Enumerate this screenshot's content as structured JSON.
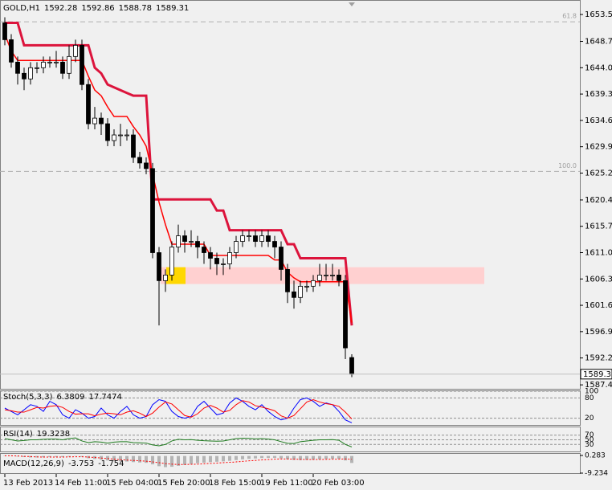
{
  "chart_data": [
    {
      "type": "candlestick",
      "title": "GOLD,H1",
      "categories": [
        "13 Feb 2013",
        null,
        null,
        null,
        null,
        null,
        null,
        null,
        "14 Feb 11:00",
        null,
        null,
        null,
        null,
        null,
        null,
        null,
        "15 Feb 04:00",
        null,
        null,
        null,
        null,
        null,
        null,
        null,
        "15 Feb 20:00",
        null,
        null,
        null,
        null,
        null,
        null,
        null,
        "18 Feb 15:00",
        null,
        null,
        null,
        null,
        null,
        null,
        null,
        "19 Feb 11:00",
        null,
        null,
        null,
        null,
        null,
        null,
        null,
        "20 Feb 03:00",
        null,
        null,
        null,
        null,
        null,
        null
      ],
      "open": [
        1652,
        1649,
        1645,
        1643,
        1642,
        1644,
        1644,
        1645,
        1645,
        1645,
        1643,
        1646,
        1648,
        1641,
        1634,
        1635,
        1634,
        1631,
        1632,
        1632,
        1632,
        1628,
        1627,
        1626,
        1611,
        1606,
        1607,
        1612,
        1614,
        1613,
        1613,
        1612,
        1611,
        1610,
        1609,
        1609,
        1611,
        1613,
        1614,
        1614,
        1613,
        1614,
        1613,
        1612,
        1608,
        1604,
        1603,
        1605,
        1605,
        1606,
        1607,
        1607,
        1607,
        1606,
        1592.28
      ],
      "high": [
        1653,
        1650,
        1646,
        1644,
        1645,
        1645,
        1646,
        1646,
        1647,
        1646,
        1648,
        1649,
        1649,
        1642,
        1637,
        1636,
        1635,
        1633,
        1634,
        1633,
        1633,
        1629,
        1628,
        1627,
        1612,
        1608,
        1613,
        1616,
        1615,
        1615,
        1614,
        1613,
        1612,
        1611,
        1610,
        1612,
        1614,
        1615,
        1615,
        1615,
        1615,
        1615,
        1614,
        1613,
        1609,
        1606,
        1606,
        1606,
        1607,
        1609,
        1609,
        1609,
        1608,
        1607,
        1592.86
      ],
      "low": [
        1648,
        1644,
        1641,
        1640,
        1641,
        1643,
        1643,
        1644,
        1644,
        1642,
        1642,
        1645,
        1640,
        1633,
        1633,
        1632,
        1630,
        1630,
        1630,
        1631,
        1627,
        1626,
        1625,
        1610,
        1598,
        1604,
        1606,
        1611,
        1611,
        1612,
        1610,
        1609,
        1608,
        1607,
        1607,
        1608,
        1610,
        1612,
        1613,
        1612,
        1612,
        1612,
        1610,
        1606,
        1602,
        1601,
        1602,
        1604,
        1604,
        1605,
        1606,
        1606,
        1605,
        1592,
        1588.78
      ],
      "close": [
        1649,
        1645,
        1643,
        1642,
        1644,
        1644,
        1645,
        1645,
        1645,
        1643,
        1646,
        1648,
        1641,
        1634,
        1635,
        1634,
        1631,
        1632,
        1632,
        1632,
        1628,
        1627,
        1626,
        1611,
        1606,
        1607,
        1612,
        1614,
        1613,
        1613,
        1612,
        1611,
        1610,
        1609,
        1609,
        1611,
        1613,
        1614,
        1614,
        1613,
        1614,
        1613,
        1612,
        1608,
        1604,
        1603,
        1605,
        1605,
        1606,
        1607,
        1607,
        1607,
        1606,
        1594,
        1589.31
      ],
      "colors": {
        "up": "#ffffff",
        "down": "#000000",
        "outline": "#000000"
      },
      "series": [
        {
          "color": "#dc143c",
          "values": [
            1652,
            1652,
            1652,
            1648,
            1648,
            1648,
            1648,
            1648,
            1648,
            1648,
            1648,
            1648,
            1648,
            1648,
            1644,
            1643,
            1641,
            1640.5,
            1640,
            1639.5,
            1639,
            1639,
            1639,
            1620.5,
            1620.5,
            1620.5,
            1620.5,
            1620.5,
            1620.5,
            1620.5,
            1620.5,
            1620.5,
            1620.5,
            1618.5,
            1618.5,
            1615,
            1615,
            1615,
            1615,
            1615,
            1615,
            1615,
            1615,
            1615,
            1612.5,
            1612.5,
            1610,
            1610,
            1610,
            1610,
            1610,
            1610,
            1610,
            1610,
            1598
          ]
        },
        {
          "color": "#ff0000",
          "values": [
            1650,
            1647,
            1645.3,
            1645.3,
            1645.3,
            1645.3,
            1645.3,
            1645.3,
            1645.3,
            1645.3,
            1645.3,
            1645.3,
            1645.3,
            1642.5,
            1640,
            1639,
            1637,
            1635.3,
            1635.3,
            1635.3,
            1633.5,
            1632,
            1630,
            1625,
            1620,
            1616,
            1612.5,
            1612.5,
            1612.5,
            1612.5,
            1612.5,
            1612.5,
            1610.5,
            1610.5,
            1610.5,
            1610.5,
            1610.5,
            1610.5,
            1610.5,
            1610.5,
            1610.5,
            1610.5,
            1609.7,
            1609.7,
            1607.5,
            1606.5,
            1605.8,
            1605.8,
            1605.8,
            1605.8,
            1605.8,
            1605.8,
            1605.8,
            1605.8,
            1598.5
          ]
        }
      ],
      "levels": [
        {
          "value": 1652.2,
          "label": "61.8"
        },
        {
          "value": 1625.5,
          "label": "100.0"
        }
      ],
      "zone": {
        "low": 1605.4,
        "high": 1608.4,
        "color": "#ffd0d0",
        "highlight": "#ffd700"
      },
      "ylim": [
        1586.7,
        1655.8
      ],
      "yticks": [
        {
          "value": 1653.5,
          "label": "1653.50"
        },
        {
          "value": 1648.7,
          "label": "1648.70"
        },
        {
          "value": 1644,
          "label": "1644.00"
        },
        {
          "value": 1639.3,
          "label": "1639.30"
        },
        {
          "value": 1634.6,
          "label": "1634.60"
        },
        {
          "value": 1629.9,
          "label": "1629.90"
        },
        {
          "value": 1625.2,
          "label": "1625.20"
        },
        {
          "value": 1620.4,
          "label": "1620.40"
        },
        {
          "value": 1615.7,
          "label": "1615.70"
        },
        {
          "value": 1611,
          "label": "1611.00"
        },
        {
          "value": 1606.3,
          "label": "1606.30"
        },
        {
          "value": 1601.6,
          "label": "1601.60"
        },
        {
          "value": 1596.9,
          "label": "1596.90"
        },
        {
          "value": 1592.2,
          "label": "1592.20"
        },
        {
          "value": 1587.4,
          "label": "1587.40"
        }
      ]
    },
    {
      "type": "line",
      "title": "Stoch(5,3,3)",
      "series": [
        {
          "color": "#0000ff",
          "values": [
            50,
            40,
            30,
            45,
            60,
            55,
            40,
            70,
            60,
            30,
            20,
            45,
            35,
            20,
            25,
            50,
            30,
            20,
            40,
            55,
            30,
            20,
            25,
            60,
            75,
            70,
            40,
            25,
            20,
            25,
            55,
            70,
            50,
            30,
            35,
            65,
            80,
            70,
            55,
            45,
            60,
            40,
            25,
            15,
            20,
            50,
            75,
            80,
            70,
            55,
            65,
            60,
            40,
            15,
            6.3809
          ]
        },
        {
          "color": "#ff0000",
          "values": [
            45,
            42,
            38,
            38,
            45,
            52,
            50,
            55,
            57,
            52,
            40,
            32,
            33,
            33,
            27,
            32,
            35,
            33,
            30,
            38,
            42,
            35,
            25,
            35,
            53,
            68,
            62,
            45,
            28,
            23,
            33,
            50,
            58,
            50,
            38,
            43,
            60,
            72,
            68,
            57,
            53,
            48,
            42,
            27,
            20,
            28,
            48,
            68,
            75,
            68,
            63,
            60,
            55,
            38,
            17.7474
          ]
        }
      ],
      "ylim": [
        0,
        100
      ],
      "yticks": [
        20,
        80,
        100
      ]
    },
    {
      "type": "line",
      "title": "RSI(14)",
      "series": [
        {
          "color": "#1e7b1e",
          "values": [
            55,
            50,
            45,
            47,
            50,
            50,
            52,
            53,
            53,
            50,
            55,
            58,
            45,
            38,
            42,
            40,
            36,
            40,
            42,
            42,
            38,
            37,
            36,
            28,
            24,
            30,
            45,
            52,
            50,
            51,
            48,
            46,
            45,
            44,
            45,
            50,
            55,
            57,
            56,
            54,
            55,
            53,
            50,
            42,
            35,
            34,
            42,
            45,
            48,
            50,
            50,
            51,
            48,
            30,
            19.3238
          ]
        }
      ],
      "ylim": [
        0,
        100
      ],
      "yticks": [
        30,
        50,
        70
      ]
    },
    {
      "type": "bar",
      "title": "MACD(12,26,9)",
      "series": [
        {
          "kind": "histogram",
          "color": "#b4b4b4",
          "values": [
            0.2,
            0.1,
            -0.3,
            -0.6,
            -0.8,
            -0.8,
            -0.7,
            -0.6,
            -0.5,
            -0.6,
            -0.4,
            -0.1,
            -0.5,
            -1.2,
            -1.6,
            -2,
            -2.4,
            -2.8,
            -2.9,
            -3,
            -3.3,
            -3.5,
            -3.7,
            -4.5,
            -5.5,
            -6,
            -5.8,
            -5.3,
            -4.8,
            -4.3,
            -3.9,
            -3.6,
            -3.3,
            -3.1,
            -2.9,
            -2.6,
            -2.2,
            -1.8,
            -1.5,
            -1.3,
            -1.1,
            -1,
            -1,
            -1.3,
            -1.8,
            -2.1,
            -2.2,
            -2.1,
            -2,
            -1.8,
            -1.6,
            -1.5,
            -1.5,
            -2.4,
            -3.753
          ]
        },
        {
          "kind": "line",
          "color": "#ff0000",
          "values": [
            0.1,
            0.1,
            0,
            -0.2,
            -0.3,
            -0.5,
            -0.6,
            -0.6,
            -0.6,
            -0.6,
            -0.5,
            -0.4,
            -0.4,
            -0.6,
            -0.8,
            -1.1,
            -1.4,
            -1.7,
            -2,
            -2.2,
            -2.4,
            -2.6,
            -2.8,
            -3.2,
            -3.6,
            -4.1,
            -4.4,
            -4.6,
            -4.6,
            -4.5,
            -4.4,
            -4.2,
            -4,
            -3.8,
            -3.6,
            -3.4,
            -3.2,
            -2.9,
            -2.6,
            -2.4,
            -2.1,
            -1.9,
            -1.7,
            -1.6,
            -1.6,
            -1.7,
            -1.8,
            -1.9,
            -1.9,
            -1.9,
            -1.8,
            -1.7,
            -1.7,
            -1.6,
            -1.754
          ]
        }
      ],
      "ylim": [
        -9.234,
        0.283
      ],
      "yticks": [
        0.283,
        -9.234
      ]
    }
  ]
}
